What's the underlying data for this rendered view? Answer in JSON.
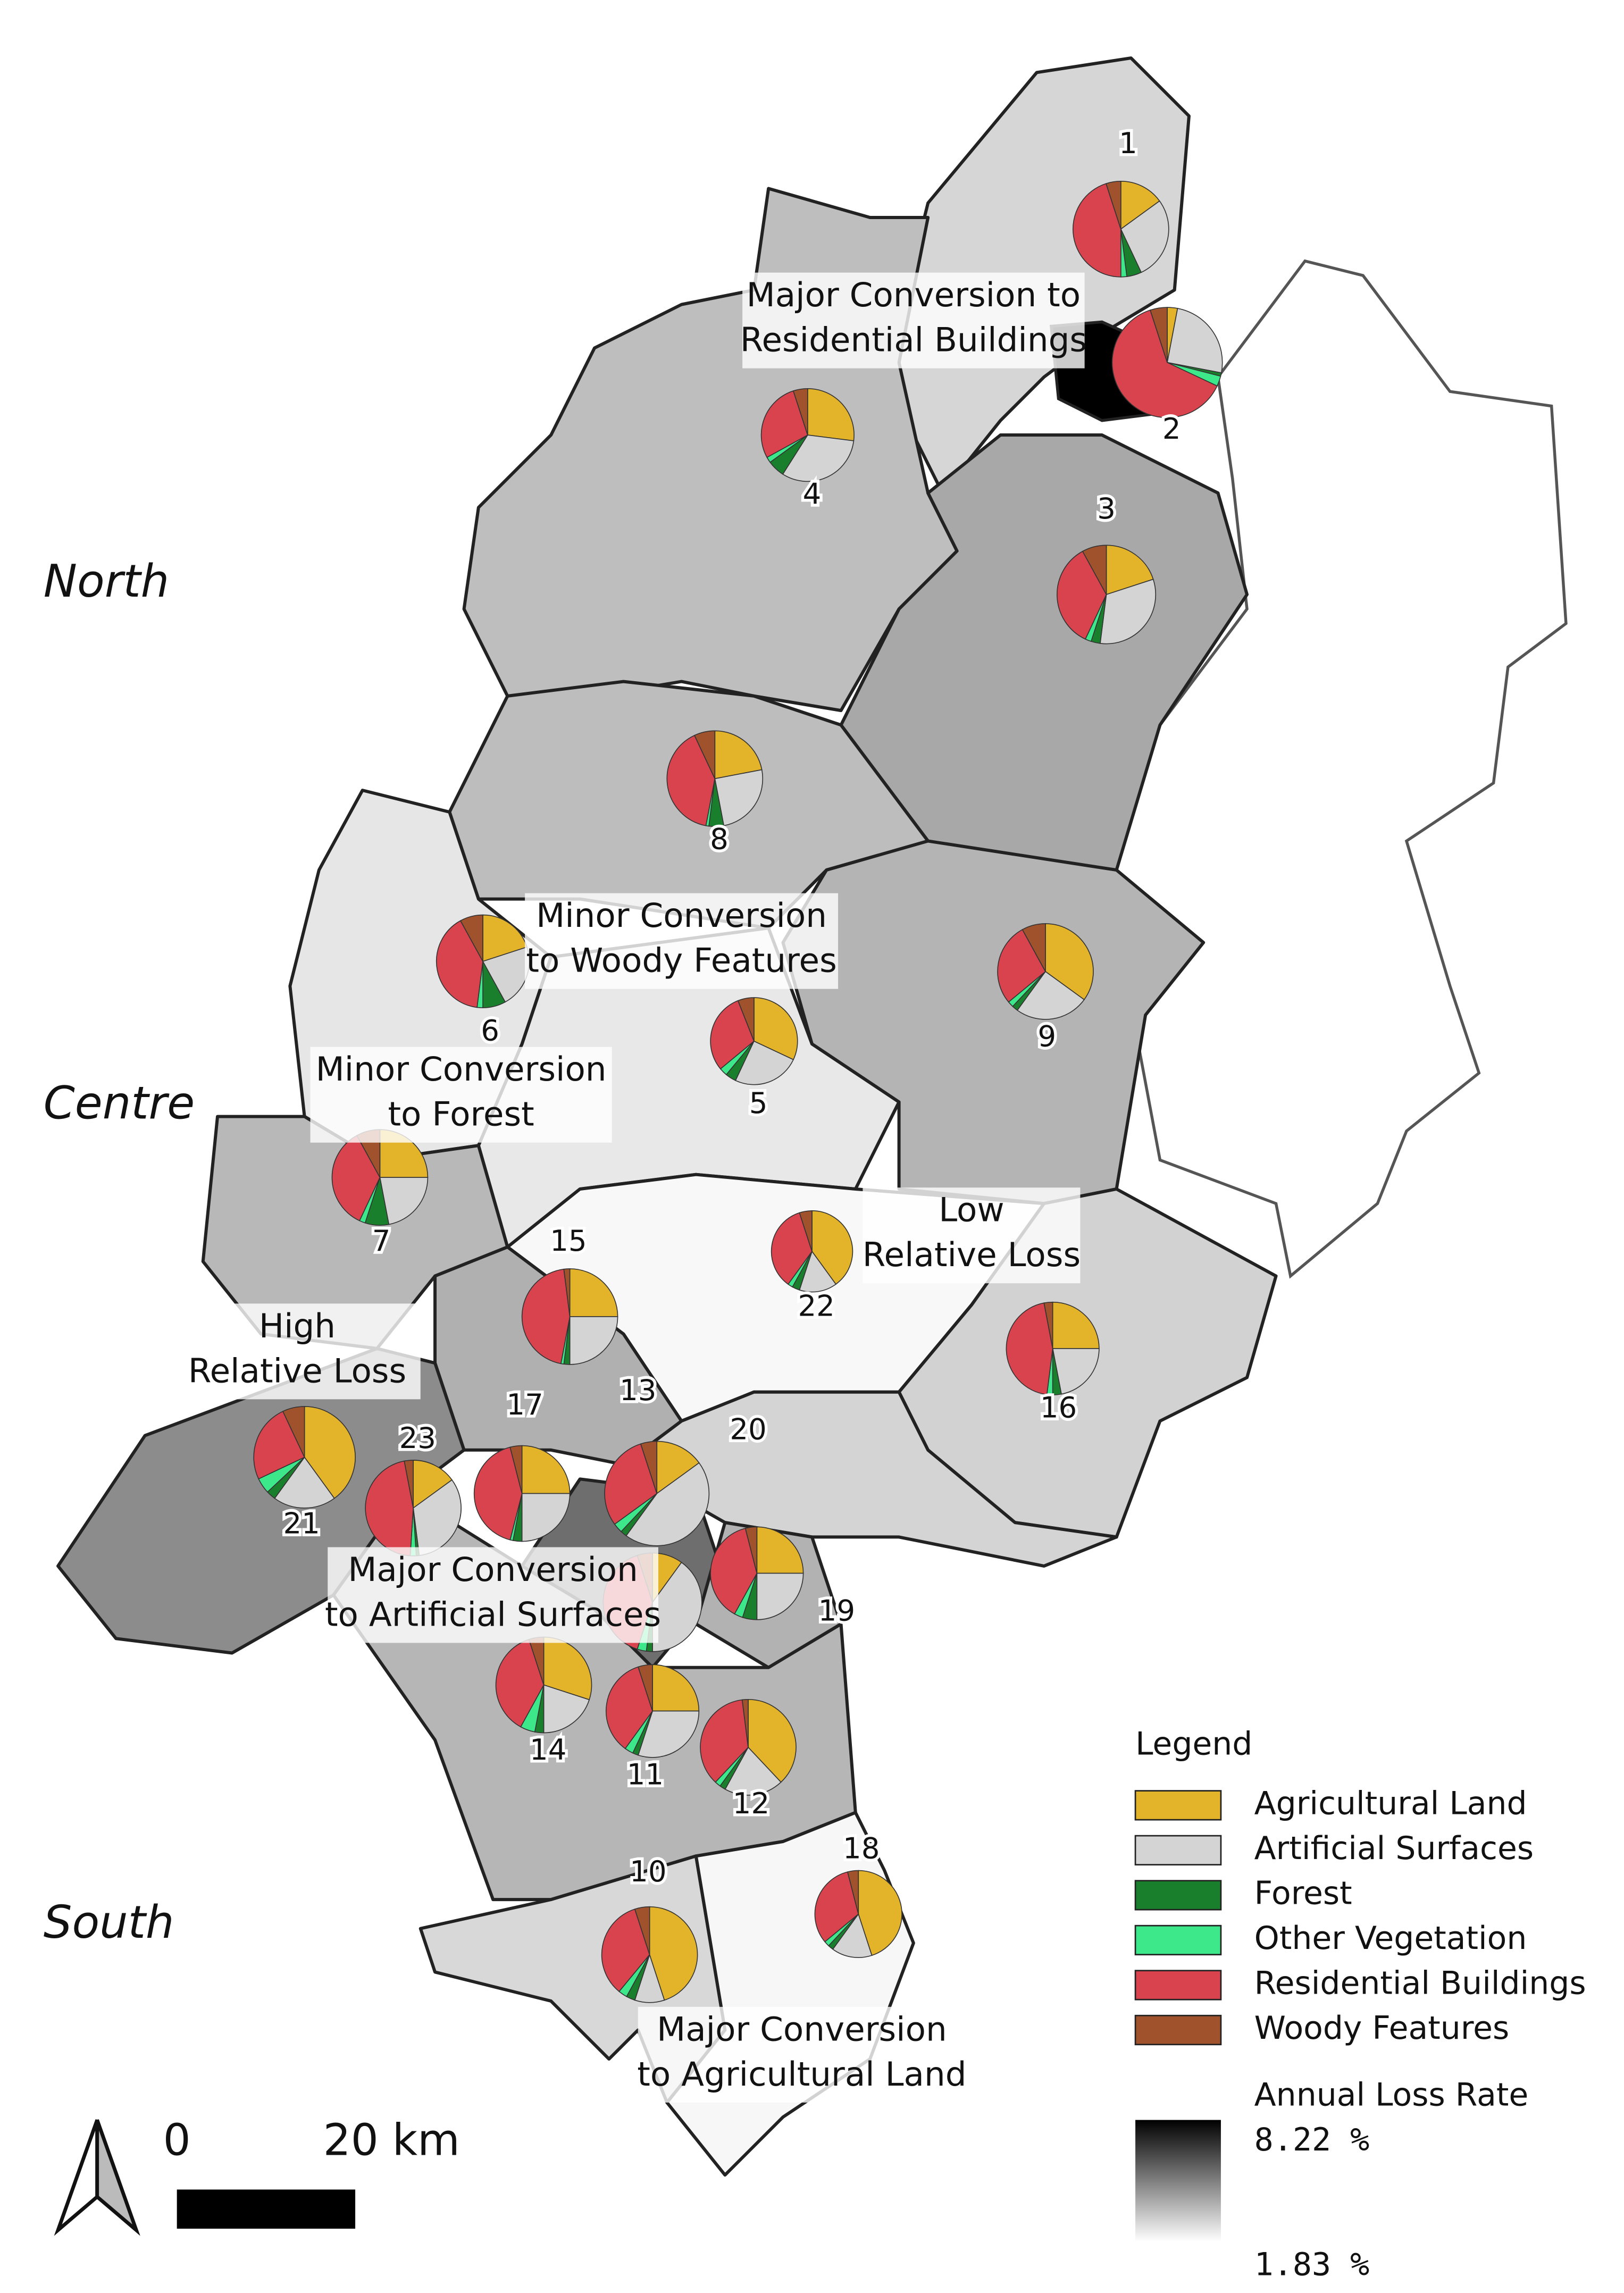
{
  "regions": [
    "North",
    "Centre",
    "South"
  ],
  "annotations": [
    {
      "lines": [
        "Major Conversion to",
        "Residential Buildings"
      ]
    },
    {
      "lines": [
        "Minor Conversion",
        "to Woody Features"
      ]
    },
    {
      "lines": [
        "Minor Conversion",
        "to Forest"
      ]
    },
    {
      "lines": [
        "Low",
        "Relative Loss"
      ]
    },
    {
      "lines": [
        "High",
        "Relative Loss"
      ]
    },
    {
      "lines": [
        "Major Conversion",
        "to Artificial Surfaces"
      ]
    },
    {
      "lines": [
        "Major Conversion",
        "to Agricultural Land"
      ]
    }
  ],
  "legend": {
    "title": "Legend",
    "classes": [
      {
        "name": "Agricultural Land",
        "color": "#e3b32a"
      },
      {
        "name": "Artificial Surfaces",
        "color": "#d4d4d4"
      },
      {
        "name": "Forest",
        "color": "#1a7f2c"
      },
      {
        "name": "Other Vegetation",
        "color": "#3de88a"
      },
      {
        "name": "Residential Buildings",
        "color": "#d9434e"
      },
      {
        "name": "Woody Features",
        "color": "#a0522d"
      }
    ],
    "gradient": {
      "title": "Annual Loss Rate",
      "max": {
        "value": 8.22,
        "label": "8.22 %",
        "color": "#000000"
      },
      "min": {
        "value": 1.83,
        "label": "1.83 %",
        "color": "#ffffff"
      }
    }
  },
  "scale_bar": {
    "start": "0",
    "end": "20 km"
  },
  "districts": [
    {
      "label": "1",
      "shares": [
        15,
        28,
        5,
        2,
        45,
        5
      ]
    },
    {
      "label": "2",
      "shares": [
        3,
        25,
        1,
        3,
        63,
        5
      ]
    },
    {
      "label": "3",
      "shares": [
        20,
        32,
        3,
        2,
        35,
        8
      ]
    },
    {
      "label": "4",
      "shares": [
        27,
        32,
        6,
        2,
        28,
        5
      ]
    },
    {
      "label": "5",
      "shares": [
        32,
        25,
        4,
        3,
        30,
        6
      ]
    },
    {
      "label": "6",
      "shares": [
        20,
        22,
        8,
        2,
        40,
        8
      ]
    },
    {
      "label": "7",
      "shares": [
        25,
        22,
        8,
        2,
        35,
        8
      ]
    },
    {
      "label": "8",
      "shares": [
        22,
        25,
        5,
        1,
        40,
        7
      ]
    },
    {
      "label": "9",
      "shares": [
        35,
        25,
        2,
        2,
        28,
        8
      ]
    },
    {
      "label": "10",
      "shares": [
        45,
        10,
        3,
        3,
        34,
        5
      ]
    },
    {
      "label": "11",
      "shares": [
        25,
        30,
        2,
        3,
        35,
        5
      ]
    },
    {
      "label": "12",
      "shares": [
        38,
        20,
        2,
        2,
        36,
        2
      ]
    },
    {
      "label": "13",
      "shares": [
        15,
        45,
        2,
        3,
        30,
        5
      ]
    },
    {
      "label": "14",
      "shares": [
        30,
        20,
        3,
        5,
        37,
        5
      ]
    },
    {
      "label": "15",
      "shares": [
        25,
        25,
        2,
        1,
        45,
        2
      ]
    },
    {
      "label": "16",
      "shares": [
        25,
        22,
        3,
        2,
        45,
        3
      ]
    },
    {
      "label": "17",
      "shares": [
        25,
        25,
        3,
        1,
        42,
        4
      ]
    },
    {
      "label": "18",
      "shares": [
        45,
        15,
        2,
        2,
        32,
        4
      ]
    },
    {
      "label": "19",
      "shares": [
        25,
        25,
        5,
        3,
        38,
        4
      ]
    },
    {
      "label": "20",
      "shares": [
        10,
        40,
        2,
        3,
        40,
        5
      ]
    },
    {
      "label": "21",
      "shares": [
        40,
        20,
        3,
        5,
        25,
        7
      ]
    },
    {
      "label": "22",
      "shares": [
        40,
        15,
        3,
        2,
        35,
        5
      ]
    },
    {
      "label": "23",
      "shares": [
        15,
        33,
        1,
        2,
        46,
        3
      ]
    }
  ]
}
